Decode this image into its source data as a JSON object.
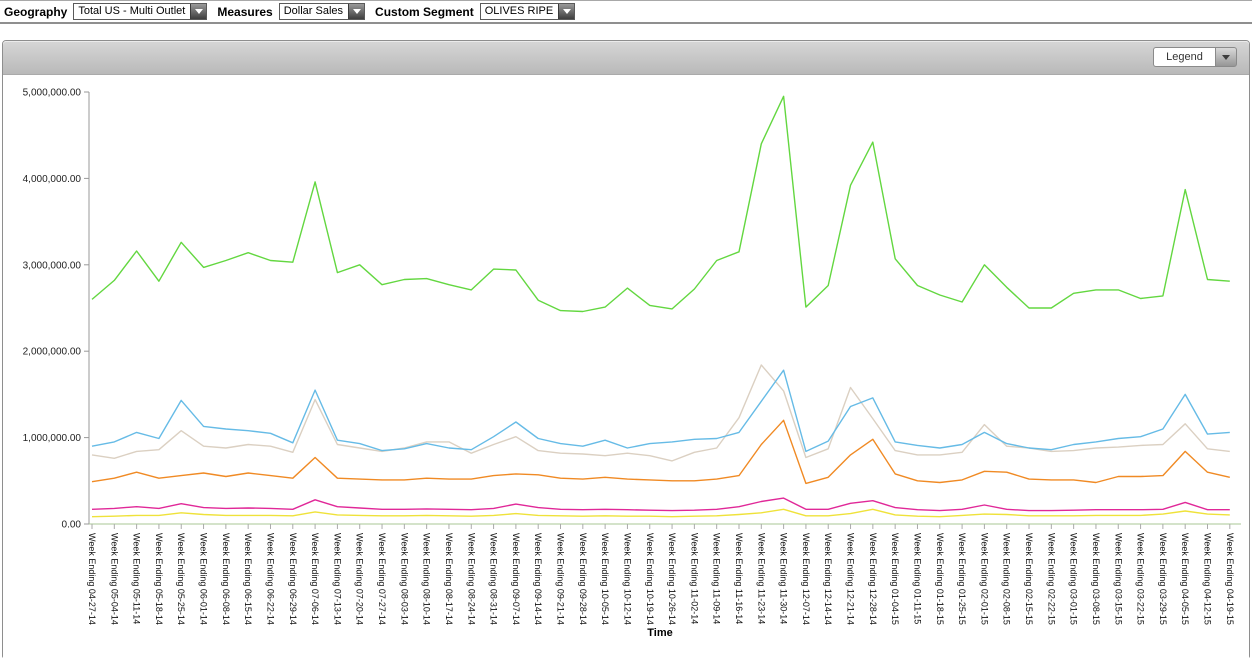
{
  "toolbar": {
    "filters": [
      {
        "label": "Geography",
        "value": "Total US - Multi Outlet"
      },
      {
        "label": "Measures",
        "value": "Dollar Sales"
      },
      {
        "label": "Custom Segment",
        "value": "OLIVES RIPE"
      }
    ]
  },
  "panel": {
    "legend_label": "Legend"
  },
  "chart_data": {
    "type": "line",
    "title": "",
    "xlabel": "Time",
    "ylabel": "",
    "ylim": [
      0,
      5000000
    ],
    "grid": false,
    "legend_position": "collapsed-dropdown-top-right",
    "y_tick_labels": [
      "0.00",
      "1,000,000.00",
      "2,000,000.00",
      "3,000,000.00",
      "4,000,000.00",
      "5,000,000.00"
    ],
    "categories": [
      "Week Ending 04-27-14",
      "Week Ending 05-04-14",
      "Week Ending 05-11-14",
      "Week Ending 05-18-14",
      "Week Ending 05-25-14",
      "Week Ending 06-01-14",
      "Week Ending 06-08-14",
      "Week Ending 06-15-14",
      "Week Ending 06-22-14",
      "Week Ending 06-29-14",
      "Week Ending 07-06-14",
      "Week Ending 07-13-14",
      "Week Ending 07-20-14",
      "Week Ending 07-27-14",
      "Week Ending 08-03-14",
      "Week Ending 08-10-14",
      "Week Ending 08-17-14",
      "Week Ending 08-24-14",
      "Week Ending 08-31-14",
      "Week Ending 09-07-14",
      "Week Ending 09-14-14",
      "Week Ending 09-21-14",
      "Week Ending 09-28-14",
      "Week Ending 10-05-14",
      "Week Ending 10-12-14",
      "Week Ending 10-19-14",
      "Week Ending 10-26-14",
      "Week Ending 11-02-14",
      "Week Ending 11-09-14",
      "Week Ending 11-16-14",
      "Week Ending 11-23-14",
      "Week Ending 11-30-14",
      "Week Ending 12-07-14",
      "Week Ending 12-14-14",
      "Week Ending 12-21-14",
      "Week Ending 12-28-14",
      "Week Ending 01-04-15",
      "Week Ending 01-11-15",
      "Week Ending 01-18-15",
      "Week Ending 01-25-15",
      "Week Ending 02-01-15",
      "Week Ending 02-08-15",
      "Week Ending 02-15-15",
      "Week Ending 02-22-15",
      "Week Ending 03-01-15",
      "Week Ending 03-08-15",
      "Week Ending 03-15-15",
      "Week Ending 03-22-15",
      "Week Ending 03-29-15",
      "Week Ending 04-05-15",
      "Week Ending 04-12-15",
      "Week Ending 04-19-15"
    ],
    "series": [
      {
        "name": "green",
        "color": "#63D740",
        "values": [
          2600000,
          2820000,
          3160000,
          2810000,
          3260000,
          2970000,
          3050000,
          3140000,
          3050000,
          3030000,
          3960000,
          2910000,
          3000000,
          2770000,
          2830000,
          2840000,
          2770000,
          2710000,
          2950000,
          2940000,
          2590000,
          2470000,
          2460000,
          2510000,
          2730000,
          2530000,
          2490000,
          2720000,
          3050000,
          3150000,
          4400000,
          4950000,
          2510000,
          2760000,
          3920000,
          4420000,
          3070000,
          2760000,
          2650000,
          2570000,
          3000000,
          2740000,
          2500000,
          2500000,
          2670000,
          2710000,
          2710000,
          2610000,
          2640000,
          3870000,
          2830000,
          2810000
        ]
      },
      {
        "name": "tan",
        "color": "#DBD0C2",
        "values": [
          800000,
          760000,
          840000,
          860000,
          1080000,
          900000,
          880000,
          920000,
          900000,
          830000,
          1440000,
          920000,
          880000,
          840000,
          880000,
          950000,
          950000,
          820000,
          920000,
          1010000,
          850000,
          820000,
          810000,
          790000,
          820000,
          790000,
          730000,
          830000,
          880000,
          1230000,
          1840000,
          1540000,
          770000,
          870000,
          1580000,
          1220000,
          850000,
          800000,
          800000,
          830000,
          1150000,
          900000,
          880000,
          840000,
          850000,
          880000,
          890000,
          910000,
          920000,
          1160000,
          870000,
          840000
        ]
      },
      {
        "name": "blue",
        "color": "#66BBE6",
        "values": [
          900000,
          950000,
          1060000,
          990000,
          1430000,
          1130000,
          1100000,
          1080000,
          1050000,
          940000,
          1550000,
          970000,
          930000,
          850000,
          870000,
          930000,
          880000,
          860000,
          1010000,
          1180000,
          990000,
          930000,
          900000,
          970000,
          880000,
          930000,
          950000,
          980000,
          990000,
          1060000,
          1420000,
          1780000,
          840000,
          960000,
          1360000,
          1460000,
          950000,
          910000,
          880000,
          920000,
          1060000,
          930000,
          880000,
          860000,
          920000,
          950000,
          990000,
          1010000,
          1100000,
          1500000,
          1040000,
          1060000
        ]
      },
      {
        "name": "orange",
        "color": "#F08A24",
        "values": [
          490000,
          530000,
          600000,
          530000,
          560000,
          590000,
          550000,
          590000,
          560000,
          530000,
          770000,
          530000,
          520000,
          510000,
          510000,
          530000,
          520000,
          520000,
          560000,
          580000,
          570000,
          530000,
          520000,
          540000,
          520000,
          510000,
          500000,
          500000,
          520000,
          560000,
          920000,
          1200000,
          470000,
          540000,
          800000,
          980000,
          580000,
          500000,
          480000,
          510000,
          610000,
          600000,
          520000,
          510000,
          510000,
          480000,
          550000,
          550000,
          560000,
          840000,
          600000,
          540000
        ]
      },
      {
        "name": "magenta",
        "color": "#E02898",
        "values": [
          170000,
          180000,
          200000,
          180000,
          235000,
          190000,
          180000,
          185000,
          180000,
          170000,
          280000,
          200000,
          185000,
          170000,
          170000,
          175000,
          170000,
          165000,
          180000,
          230000,
          190000,
          170000,
          165000,
          170000,
          165000,
          160000,
          155000,
          160000,
          170000,
          200000,
          260000,
          300000,
          170000,
          170000,
          240000,
          270000,
          190000,
          165000,
          155000,
          170000,
          220000,
          170000,
          155000,
          155000,
          160000,
          165000,
          165000,
          165000,
          170000,
          250000,
          165000,
          165000
        ]
      },
      {
        "name": "yellow",
        "color": "#EFE23A",
        "values": [
          85000,
          90000,
          100000,
          100000,
          130000,
          110000,
          100000,
          100000,
          100000,
          95000,
          140000,
          105000,
          100000,
          95000,
          95000,
          100000,
          95000,
          90000,
          100000,
          120000,
          100000,
          95000,
          90000,
          95000,
          90000,
          90000,
          85000,
          90000,
          95000,
          110000,
          130000,
          170000,
          95000,
          95000,
          120000,
          170000,
          105000,
          90000,
          85000,
          100000,
          115000,
          110000,
          95000,
          95000,
          95000,
          100000,
          100000,
          100000,
          115000,
          150000,
          115000,
          105000
        ]
      }
    ]
  }
}
